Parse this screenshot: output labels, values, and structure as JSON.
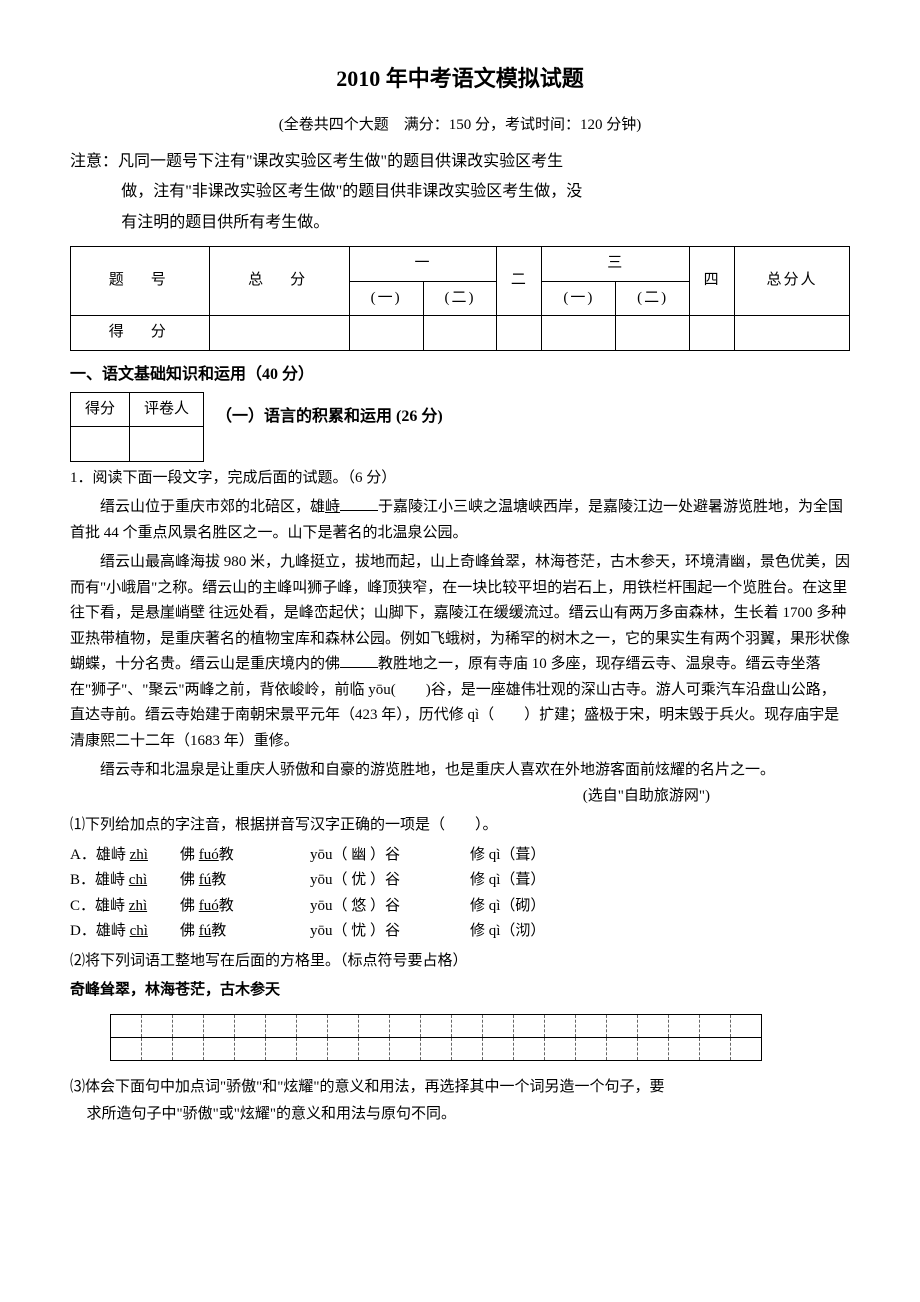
{
  "title": "2010 年中考语文模拟试题",
  "subtitle": "(全卷共四个大题　满分：150 分，考试时间：120 分钟)",
  "notice_label": "注意：",
  "notice_line1": "凡同一题号下注有\"课改实验区考生做\"的题目供课改实验区考生",
  "notice_line2": "做，注有\"非课改实验区考生做\"的题目供非课改实验区考生做，没",
  "notice_line3": "有注明的题目供所有考生做。",
  "score_table": {
    "r1c1": "题　号",
    "r1c2": "总　分",
    "r1c3": "一",
    "r1c4": "二",
    "r1c5": "三",
    "r1c6": "四",
    "r1c7": "总分人",
    "r2c1": "(一)",
    "r2c2": "(二)",
    "r2c3": "(一)",
    "r2c4": "(二)",
    "r3c1": "得　分"
  },
  "section1": "一、语文基础知识和运用（40 分）",
  "small_score": {
    "c1": "得分",
    "c2": "评卷人"
  },
  "sub1": "（一）语言的积累和运用  (26 分)",
  "q1_head": "1．阅读下面一段文字，完成后面的试题。（6 分）",
  "para1a": "缙云山位于重庆市郊的北碚区，雄",
  "para1_u1": "峙",
  "para1b": "于嘉陵江小三峡之温塘峡西岸，是嘉陵江边一处避暑游览胜地，为全国首批 44 个重点风景名胜区之一。山下是著名的北温泉公园。",
  "para2a": "缙云山最高峰海拔 980 米，九峰挺立，拔地而起，山上奇峰耸翠，林海苍茫，古木参天，环境清幽，景色优美，因而有\"小峨眉\"之称。缙云山的主峰叫狮子峰，峰顶狭窄，在一块比较平坦的岩石上，用铁栏杆围起一个览胜台。在这里往下看，是悬崖峭壁 往远处看，是峰峦起伏；山脚下，嘉陵江在缓缓流过。缙云山有两万多亩森林，生长着 1700 多种亚热带植物，是重庆著名的植物宝库和森林公园。例如飞蛾树，为稀罕的树木之一，它的果实生有两个羽翼，果形状像蝴蝶，十分名贵。缙云山是重庆境内的佛",
  "para2b": "教胜地之一，原有寺庙 10 多座，现存缙云寺、温泉寺。缙云寺坐落在\"狮子\"、\"聚云\"两峰之前，背依峻岭，前临 yōu(　　)谷，是一座雄伟壮观的深山古寺。游人可乘汽车沿盘山公路，直达寺前。缙云寺始建于南朝宋景平元年（423 年），历代修 qì（　　）扩建；盛极于宋，明末毁于兵火。现存庙宇是清康熙二十二年（1683 年）重修。",
  "para3": "缙云寺和北温泉是让重庆人骄傲和自豪的游览胜地，也是重庆人喜欢在外地游客面前炫耀的名片之一。",
  "para3_src": "(选自\"自助旅游网\")",
  "q1_1": "⑴下列给加点的字注音，根据拼音写汉字正确的一项是（　　）。",
  "optA": {
    "tag": "A．",
    "c1a": "雄峙 ",
    "c1u": "zhì",
    "c2a": "佛 ",
    "c2u": "fuó",
    "c2b": "教",
    "c3": "yōu（ 幽 ）谷",
    "c4": "修 qì（葺）"
  },
  "optB": {
    "tag": "B．",
    "c1a": "雄峙 ",
    "c1u": "chì",
    "c2a": "佛 ",
    "c2u": "fú",
    "c2b": "教",
    "c3": "yōu（ 优 ）谷",
    "c4": "修 qì（葺）"
  },
  "optC": {
    "tag": "C．",
    "c1a": "雄峙 ",
    "c1u": "zhì",
    "c2a": "佛 ",
    "c2u": "fuó",
    "c2b": "教",
    "c3": "yōu（ 悠 ）谷",
    "c4": "修 qì（砌）"
  },
  "optD": {
    "tag": "D．",
    "c1a": "雄峙 ",
    "c1u": "chì",
    "c2a": "佛 ",
    "c2u": "fú",
    "c2b": "教",
    "c3": "yōu（ 忧 ）谷",
    "c4": "修 qì（沏）"
  },
  "q1_2": "⑵将下列词语工整地写在后面的方格里。（标点符号要占格）",
  "q1_2_text": "奇峰耸翠，林海苍茫，古木参天",
  "q1_3a": "⑶体会下面句中加点词\"骄傲\"和\"炫耀\"的意义和用法，再选择其中一个词另造一个句子，要",
  "q1_3b": "求所造句子中\"骄傲\"或\"炫耀\"的意义和用法与原句不同。",
  "writegrid": {
    "rows": 2,
    "cols": 21
  }
}
